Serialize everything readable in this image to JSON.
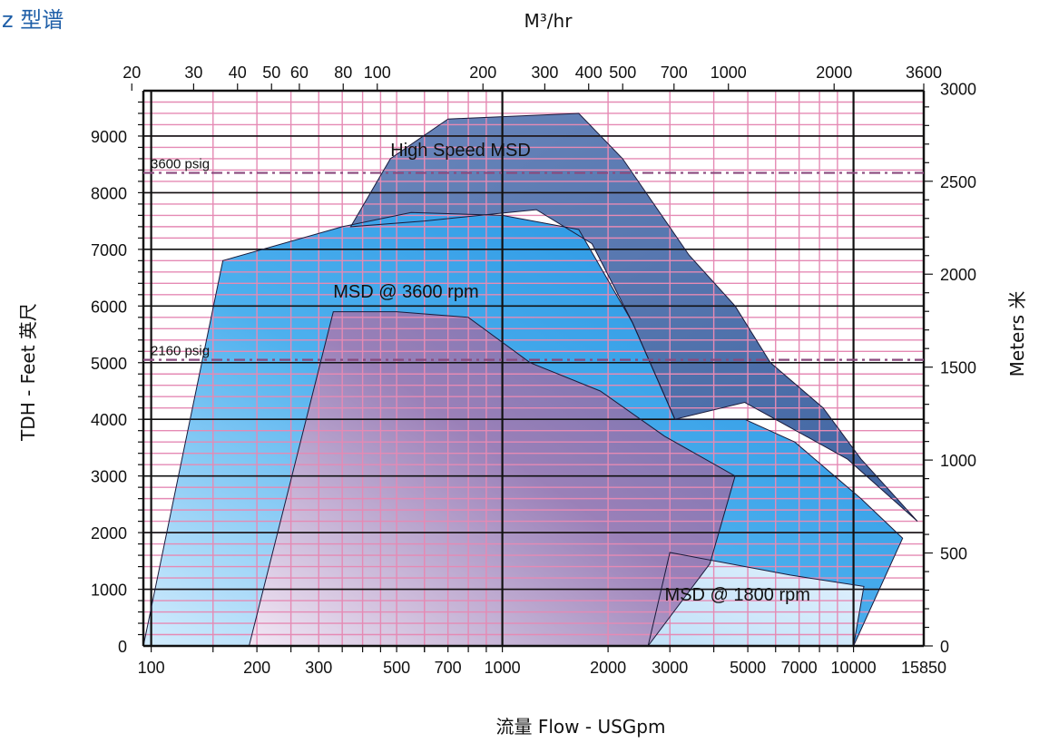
{
  "page": {
    "title": "z 型谱"
  },
  "chart_data": {
    "type": "area",
    "title": "",
    "xlabel": "流量 Flow - USGpm",
    "ylabel": "TDH - Feet  英尺",
    "x2label": "M³/hr",
    "y2label": "Meters  米",
    "x_scale": "log",
    "xlim": [
      95,
      15850
    ],
    "ylim": [
      0,
      9800
    ],
    "x2_units": "M3/hr",
    "y2_units": "meters",
    "grid": true,
    "bottom_ticks": [
      "100",
      "200",
      "300",
      "500",
      "700",
      "1000",
      "2000",
      "3000",
      "5000",
      "7000",
      "10000",
      "15850"
    ],
    "left_ticks": [
      "0",
      "1000",
      "2000",
      "3000",
      "4000",
      "5000",
      "6000",
      "7000",
      "8000",
      "9000"
    ],
    "top_ticks": [
      "20",
      "30",
      "40",
      "50",
      "60",
      "80",
      "100",
      "200",
      "300",
      "400",
      "500",
      "700",
      "1000",
      "2000",
      "3600"
    ],
    "right_ticks": [
      "0",
      "500",
      "1000",
      "1500",
      "2000",
      "2500",
      "3000"
    ],
    "reference_lines": [
      {
        "label": "3600 psig",
        "y": 8350
      },
      {
        "label": "2160 psig",
        "y": 5050
      }
    ],
    "regions": [
      {
        "name": "High  Speed MSD",
        "color": "#4f74ab",
        "points": [
          [
            370,
            7400
          ],
          [
            480,
            8600
          ],
          [
            700,
            9300
          ],
          [
            1650,
            9400
          ],
          [
            2200,
            8600
          ],
          [
            3400,
            6900
          ],
          [
            4600,
            6000
          ],
          [
            5800,
            5000
          ],
          [
            8200,
            4200
          ],
          [
            10500,
            3300
          ],
          [
            15200,
            2200
          ],
          [
            9600,
            3300
          ],
          [
            4900,
            4300
          ],
          [
            3100,
            4000
          ],
          [
            2350,
            5700
          ],
          [
            1800,
            7100
          ],
          [
            1250,
            7700
          ],
          [
            600,
            7500
          ]
        ]
      },
      {
        "name": "MSD @ 3600 rpm",
        "color": "#35a3e8",
        "points": [
          [
            95,
            0
          ],
          [
            160,
            6800
          ],
          [
            350,
            7400
          ],
          [
            550,
            7650
          ],
          [
            1000,
            7600
          ],
          [
            1650,
            7350
          ],
          [
            2350,
            5700
          ],
          [
            3100,
            4000
          ],
          [
            4900,
            4000
          ],
          [
            6800,
            3600
          ],
          [
            10500,
            2600
          ],
          [
            13800,
            1900
          ],
          [
            10000,
            0
          ]
        ]
      },
      {
        "name": "MSD @ 1800 rpm",
        "color": "#c9e6fb",
        "points": [
          [
            2600,
            0
          ],
          [
            3000,
            1650
          ],
          [
            6600,
            1250
          ],
          [
            10700,
            1050
          ],
          [
            10000,
            0
          ]
        ]
      },
      {
        "name": "",
        "color": "#a7b4df",
        "points": [
          [
            190,
            0
          ],
          [
            330,
            5900
          ],
          [
            500,
            5900
          ],
          [
            800,
            5800
          ],
          [
            1200,
            5000
          ],
          [
            1900,
            4500
          ],
          [
            2900,
            3700
          ],
          [
            4600,
            3000
          ],
          [
            3900,
            1450
          ],
          [
            2600,
            0
          ]
        ]
      }
    ]
  }
}
